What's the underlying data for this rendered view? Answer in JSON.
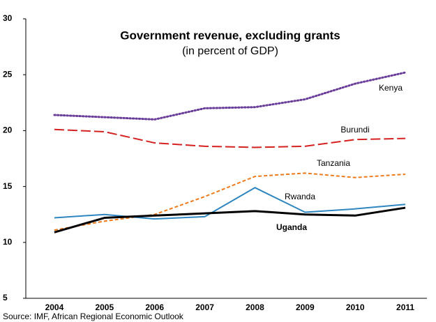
{
  "chart_data": {
    "type": "line",
    "title": "Government revenue, excluding grants",
    "subtitle": "(in percent of GDP)",
    "source": "Source: IMF, African Regional Economic Outlook",
    "categories": [
      "2004",
      "2005",
      "2006",
      "2007",
      "2008",
      "2009",
      "2010",
      "2011"
    ],
    "ylim": [
      5,
      30
    ],
    "yticks": [
      5,
      10,
      15,
      20,
      25,
      30
    ],
    "grid": false,
    "series": [
      {
        "name": "Kenya",
        "color": "#6a3d9a",
        "line_style": "dotted",
        "values": [
          21.4,
          21.2,
          21.0,
          22.0,
          22.1,
          22.8,
          24.2,
          25.2
        ]
      },
      {
        "name": "Burundi",
        "color": "#d62020",
        "line_style": "long-dashed",
        "values": [
          20.1,
          19.9,
          18.9,
          18.6,
          18.5,
          18.6,
          19.2,
          19.3
        ]
      },
      {
        "name": "Tanzania",
        "color": "#f07a1a",
        "line_style": "dashed",
        "values": [
          11.1,
          11.9,
          12.5,
          14.1,
          15.9,
          16.2,
          15.8,
          16.1
        ]
      },
      {
        "name": "Rwanda",
        "color": "#2e86c1",
        "line_style": "solid",
        "values": [
          12.2,
          12.5,
          12.1,
          12.3,
          14.9,
          12.7,
          13.0,
          13.4
        ]
      },
      {
        "name": "Uganda",
        "color": "#000000",
        "line_style": "thick",
        "values": [
          10.9,
          12.2,
          12.4,
          12.6,
          12.8,
          12.5,
          12.4,
          13.1
        ]
      }
    ]
  }
}
